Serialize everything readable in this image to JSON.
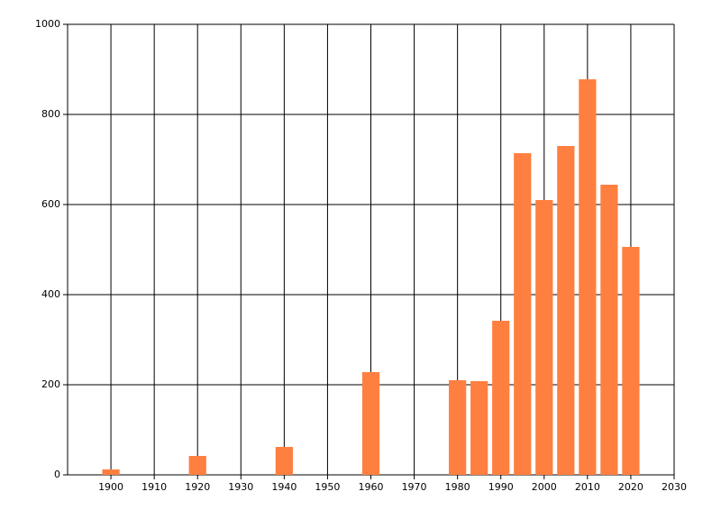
{
  "chart_data": {
    "type": "bar",
    "x": [
      1900,
      1920,
      1940,
      1960,
      1980,
      1985,
      1990,
      1995,
      2000,
      2005,
      2010,
      2015,
      2020
    ],
    "values": [
      12,
      42,
      62,
      228,
      210,
      208,
      342,
      714,
      610,
      730,
      878,
      644,
      506
    ],
    "color": "#ff7f40",
    "xlim": [
      1890,
      2030
    ],
    "xticks": [
      1900,
      1910,
      1920,
      1930,
      1940,
      1950,
      1960,
      1970,
      1980,
      1990,
      2000,
      2010,
      2020,
      2030
    ],
    "ylim": [
      0,
      1000
    ],
    "yticks": [
      0,
      200,
      400,
      600,
      800,
      1000
    ],
    "grid": true
  }
}
